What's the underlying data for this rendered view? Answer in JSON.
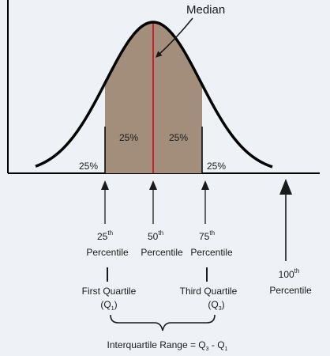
{
  "diagram": {
    "median_label": "Median",
    "percent_labels": {
      "left_tail": "25%",
      "inner_left": "25%",
      "inner_right": "25%",
      "right_tail": "25%"
    },
    "percentiles": [
      {
        "num": "25",
        "sup": "th",
        "word": "Percentile"
      },
      {
        "num": "50",
        "sup": "th",
        "word": "Percentile"
      },
      {
        "num": "75",
        "sup": "th",
        "word": "Percentile"
      },
      {
        "num": "100",
        "sup": "th",
        "word": "Percentile"
      }
    ],
    "quartiles": {
      "first": {
        "name": "First Quartile",
        "sym": "Q",
        "sub": "1"
      },
      "third": {
        "name": "Third Quartile",
        "sym": "Q",
        "sub": "3"
      }
    },
    "iqr": {
      "text": "Interquartile Range = Q",
      "sub3": "3",
      "minus": " - Q",
      "sub1": "1"
    },
    "colors": {
      "fill": "#a28e7b",
      "curve": "#000000",
      "median_line": "#c8202e",
      "background": "#eef2f6"
    }
  }
}
